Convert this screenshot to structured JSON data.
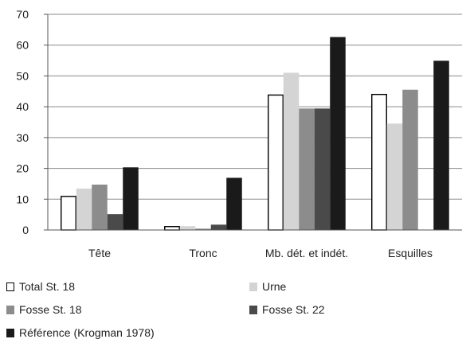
{
  "chart_data": {
    "type": "bar",
    "categories": [
      "Tête",
      "Tronc",
      "Mb. dét. et indét.",
      "Esquilles"
    ],
    "series": [
      {
        "name": "Total St. 18",
        "color": "#ffffff",
        "stroke": "#000000",
        "values": [
          10.9,
          1.1,
          43.8,
          44.0
        ]
      },
      {
        "name": "Urne",
        "color": "#d4d4d4",
        "stroke": "#d4d4d4",
        "values": [
          13.3,
          1.1,
          50.9,
          34.4
        ]
      },
      {
        "name": "Fosse St. 18",
        "color": "#8c8c8c",
        "stroke": "#8c8c8c",
        "values": [
          14.6,
          0.3,
          39.3,
          45.4
        ]
      },
      {
        "name": "Fosse St. 22",
        "color": "#4a4a4a",
        "stroke": "#4a4a4a",
        "values": [
          5.0,
          1.6,
          39.3,
          0
        ]
      },
      {
        "name": "Référence (Krogman 1978)",
        "color": "#1a1a1a",
        "stroke": "#1a1a1a",
        "values": [
          20.2,
          16.8,
          62.5,
          54.8
        ]
      }
    ],
    "yticks": [
      "0",
      "10",
      "20",
      "30",
      "40",
      "50",
      "60",
      "70"
    ],
    "ylim": [
      0,
      70
    ],
    "title": "",
    "xlabel": "",
    "ylabel": "",
    "grid": true,
    "legend_position": "bottom"
  }
}
